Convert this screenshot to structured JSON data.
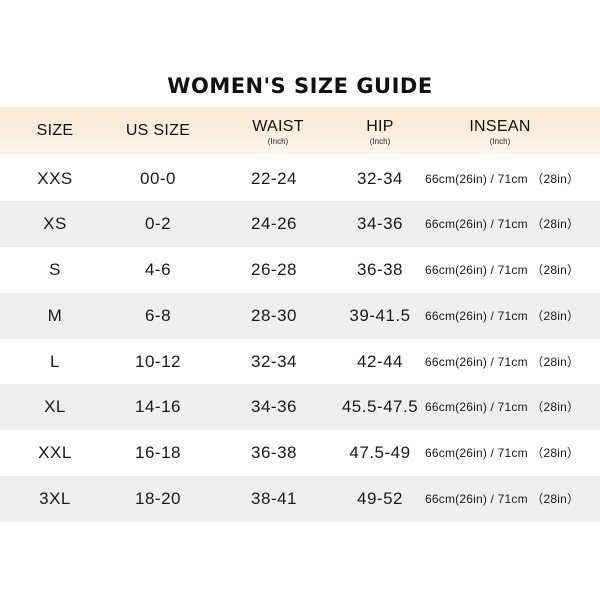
{
  "title": "WOMEN'S SIZE GUIDE",
  "headers": {
    "size": "SIZE",
    "us_size": "US SIZE",
    "waist": "WAIST",
    "waist_unit": "(Inch)",
    "hip": "HIP",
    "hip_unit": "(Inch)",
    "insean": "INSEAN",
    "insean_unit": "(Inch)"
  },
  "rows": [
    {
      "size": "XXS",
      "us": "00-0",
      "waist": "22-24",
      "hip": "32-34",
      "insean": "66cm(26in) / 71cm （28in）"
    },
    {
      "size": "XS",
      "us": "0-2",
      "waist": "24-26",
      "hip": "34-36",
      "insean": "66cm(26in) / 71cm （28in）"
    },
    {
      "size": "S",
      "us": "4-6",
      "waist": "26-28",
      "hip": "36-38",
      "insean": "66cm(26in) / 71cm （28in）"
    },
    {
      "size": "M",
      "us": "6-8",
      "waist": "28-30",
      "hip": "39-41.5",
      "insean": "66cm(26in) / 71cm （28in）"
    },
    {
      "size": "L",
      "us": "10-12",
      "waist": "32-34",
      "hip": "42-44",
      "insean": "66cm(26in) / 71cm （28in）"
    },
    {
      "size": "XL",
      "us": "14-16",
      "waist": "34-36",
      "hip": "45.5-47.5",
      "insean": "66cm(26in) / 71cm （28in）"
    },
    {
      "size": "XXL",
      "us": "16-18",
      "waist": "36-38",
      "hip": "47.5-49",
      "insean": "66cm(26in) / 71cm （28in）"
    },
    {
      "size": "3XL",
      "us": "18-20",
      "waist": "38-41",
      "hip": "49-52",
      "insean": "66cm(26in) / 71cm （28in）"
    }
  ]
}
